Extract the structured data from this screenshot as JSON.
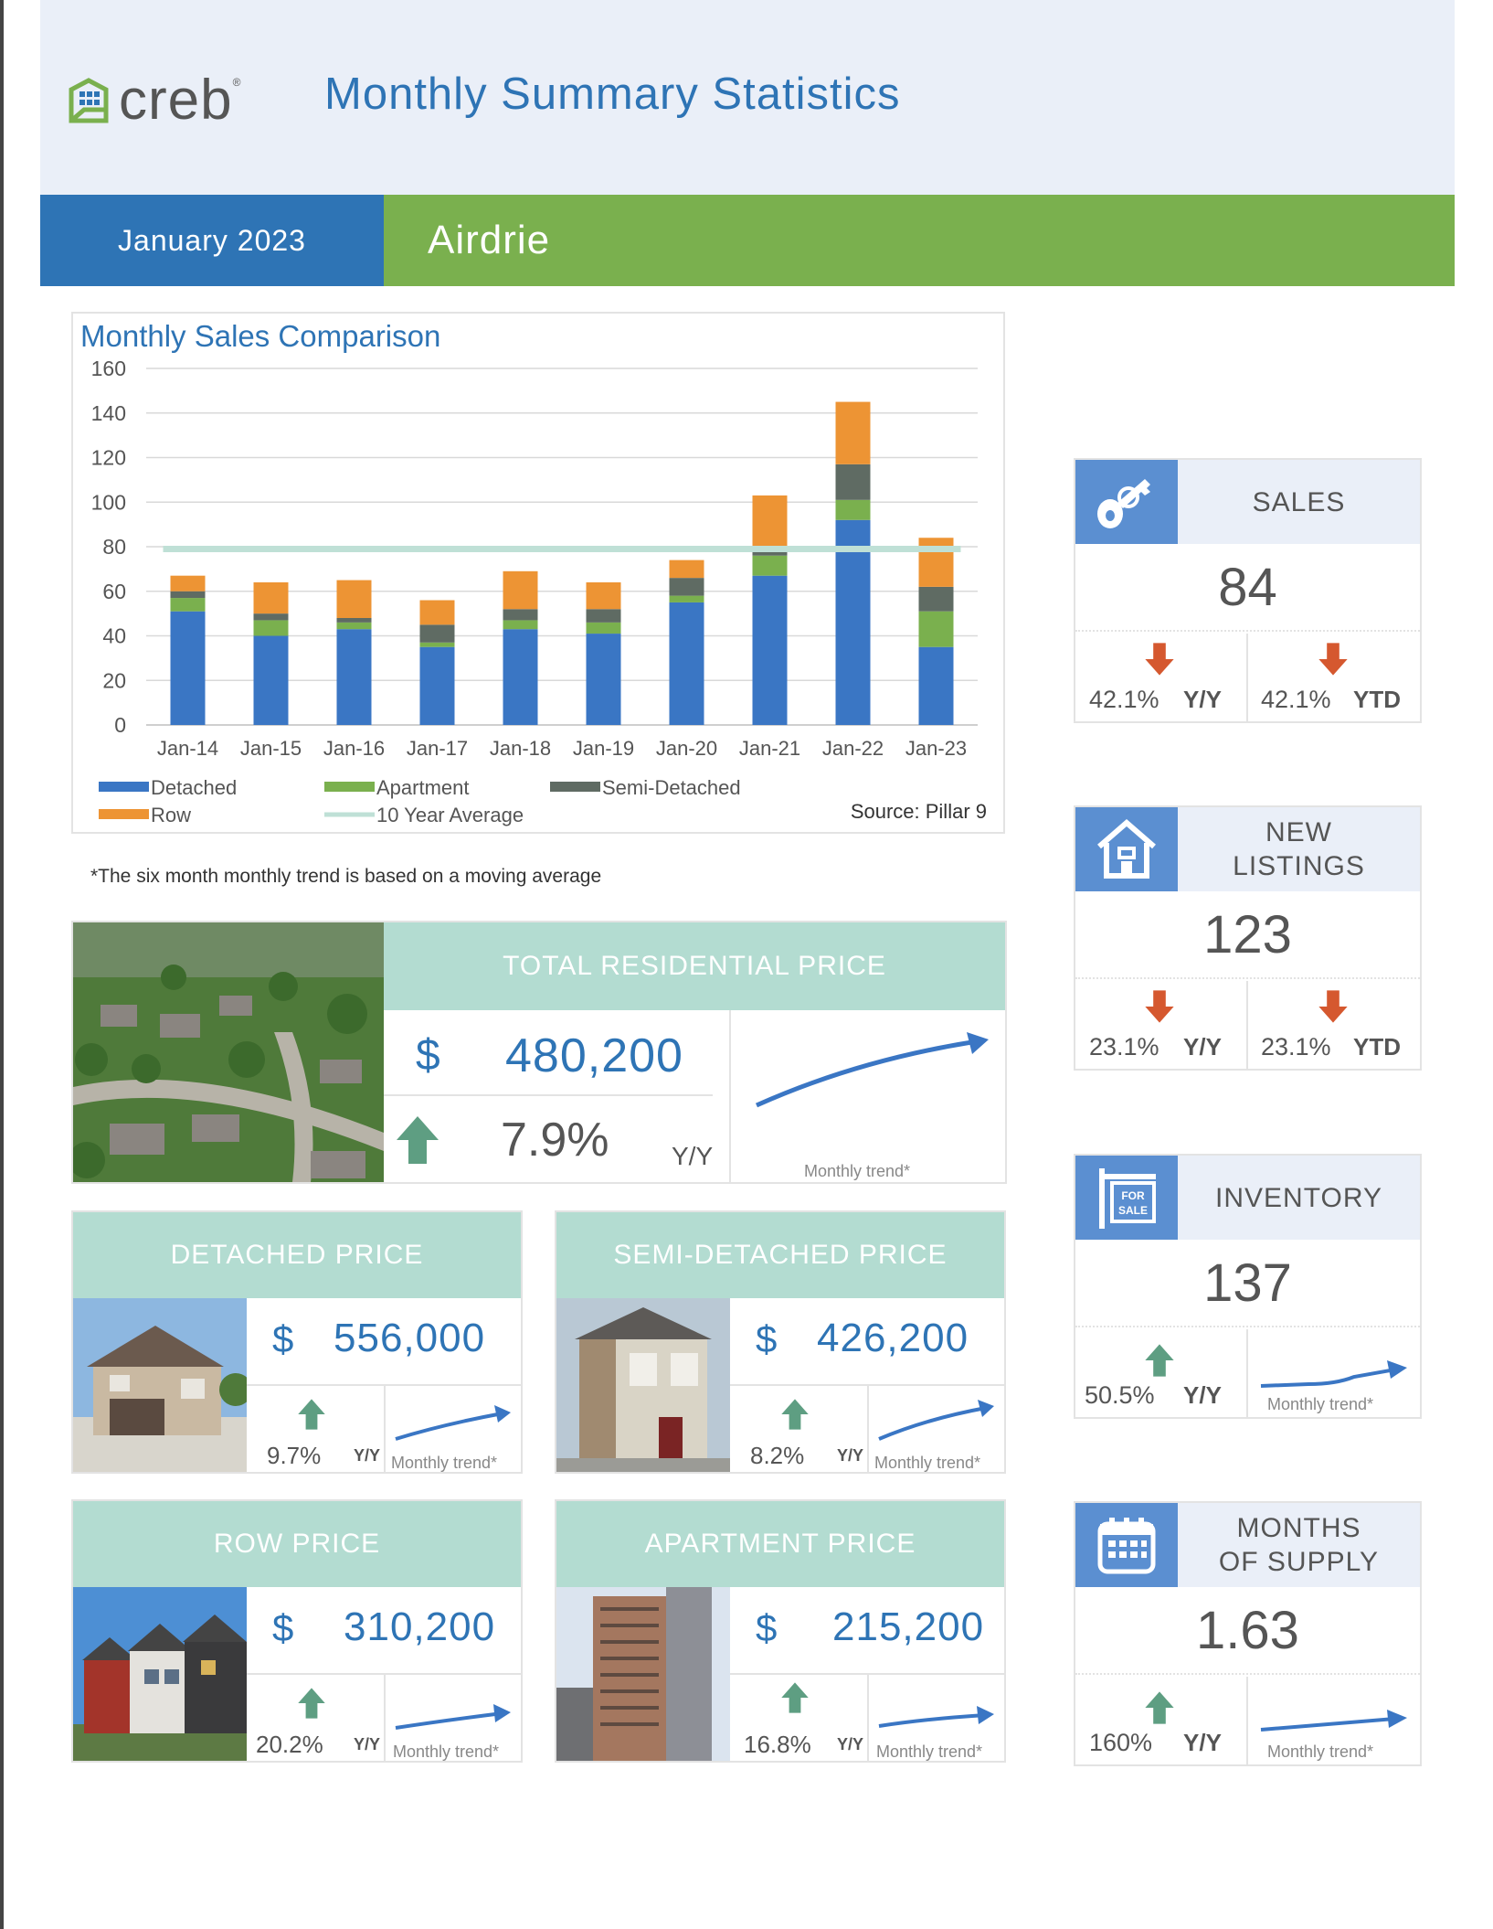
{
  "header": {
    "logo_text": "creb",
    "logo_reg": "®",
    "title": "Monthly Summary Statistics"
  },
  "band": {
    "date": "January 2023",
    "city": "Airdrie"
  },
  "colors": {
    "blue": "#2e74b5",
    "green": "#7ab04e",
    "teal": "#b3dcd1",
    "header_bg": "#eaeff8",
    "detached": "#3a76c4",
    "apartment": "#7ab04e",
    "semi_detached": "#5f6b63",
    "row": "#ed9434",
    "avg": "#bfe0d6",
    "arrow_up": "#5e9e82",
    "arrow_down": "#d5582f"
  },
  "chart_data": {
    "type": "bar",
    "stacked": true,
    "title": "Monthly Sales Comparison",
    "categories": [
      "Jan-14",
      "Jan-15",
      "Jan-16",
      "Jan-17",
      "Jan-18",
      "Jan-19",
      "Jan-20",
      "Jan-21",
      "Jan-22",
      "Jan-23"
    ],
    "series": [
      {
        "name": "Detached",
        "values": [
          51,
          40,
          43,
          35,
          43,
          41,
          55,
          67,
          92,
          35
        ]
      },
      {
        "name": "Apartment",
        "values": [
          6,
          7,
          3,
          2,
          4,
          5,
          3,
          9,
          9,
          16
        ]
      },
      {
        "name": "Semi-Detached",
        "values": [
          3,
          3,
          2,
          8,
          5,
          6,
          8,
          4,
          16,
          11
        ]
      },
      {
        "name": "Row",
        "values": [
          7,
          14,
          17,
          11,
          17,
          12,
          8,
          23,
          28,
          22
        ]
      }
    ],
    "line_series": {
      "name": "10 Year Average",
      "value": 79
    },
    "ylim": [
      0,
      160
    ],
    "yticks": [
      "0",
      "20",
      "40",
      "60",
      "80",
      "100",
      "120",
      "140",
      "160"
    ],
    "legend_position": "bottom",
    "grid": true,
    "source": "Source: Pillar 9"
  },
  "footnote": "*The six month monthly trend is based on a moving average",
  "total_price": {
    "title": "TOTAL RESIDENTIAL PRICE",
    "dollar": "$",
    "value": "480,200",
    "pct": "7.9%",
    "yy": "Y/Y",
    "trend": "Monthly trend*"
  },
  "prices": [
    {
      "title": "DETACHED PRICE",
      "dollar": "$",
      "value": "556,000",
      "pct": "9.7%",
      "yy": "Y/Y",
      "trend": "Monthly trend*"
    },
    {
      "title": "SEMI-DETACHED PRICE",
      "dollar": "$",
      "value": "426,200",
      "pct": "8.2%",
      "yy": "Y/Y",
      "trend": "Monthly trend*"
    },
    {
      "title": "ROW PRICE",
      "dollar": "$",
      "value": "310,200",
      "pct": "20.2%",
      "yy": "Y/Y",
      "trend": "Monthly trend*"
    },
    {
      "title": "APARTMENT PRICE",
      "dollar": "$",
      "value": "215,200",
      "pct": "16.8%",
      "yy": "Y/Y",
      "trend": "Monthly trend*"
    }
  ],
  "stats": {
    "sales": {
      "label": "SALES",
      "value": "84",
      "yy_pct": "42.1%",
      "yy": "Y/Y",
      "ytd_pct": "42.1%",
      "ytd": "YTD",
      "icon": "keys-icon"
    },
    "new_listings": {
      "label": "NEW LISTINGS",
      "value": "123",
      "yy_pct": "23.1%",
      "yy": "Y/Y",
      "ytd_pct": "23.1%",
      "ytd": "YTD",
      "icon": "house-icon"
    },
    "inventory": {
      "label": "INVENTORY",
      "value": "137",
      "yy_pct": "50.5%",
      "yy": "Y/Y",
      "trend": "Monthly trend*",
      "icon": "for-sale-sign-icon",
      "sign_text_1": "FOR",
      "sign_text_2": "SALE"
    },
    "months_supply": {
      "label": "MONTHS OF SUPPLY",
      "value": "1.63",
      "yy_pct": "160%",
      "yy": "Y/Y",
      "trend": "Monthly trend*",
      "icon": "calendar-icon"
    }
  }
}
